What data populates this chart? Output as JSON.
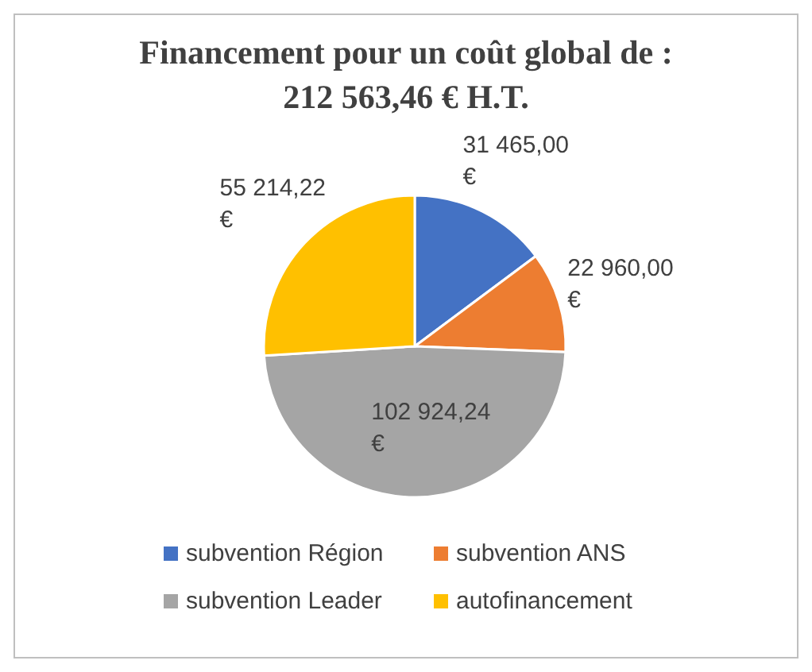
{
  "chart_data": {
    "type": "pie",
    "title": "Financement pour un coût global de :\n212 563,46 € H.T.",
    "categories": [
      "subvention Région",
      "subvention ANS",
      "subvention Leader",
      "autofinancement"
    ],
    "values": [
      31465.0,
      22960.0,
      102924.24,
      55214.22
    ],
    "colors": [
      "#4472c4",
      "#ed7d31",
      "#a5a5a5",
      "#ffc000"
    ],
    "value_labels": [
      "31 465,00 €",
      "22 960,00 €",
      "102 924,24 €",
      "55 214,22 €"
    ],
    "legend": "bottom"
  }
}
